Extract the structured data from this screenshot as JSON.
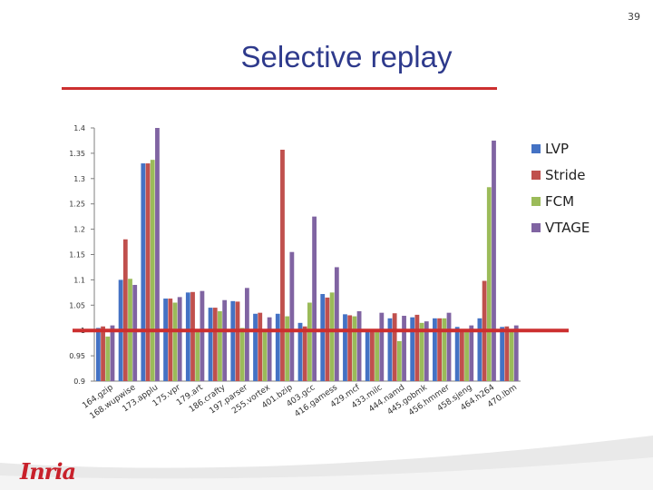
{
  "slide": {
    "title": "Selective replay",
    "page_number": "39",
    "logo_text": "Inria",
    "accent_color": "#cc2f2f",
    "title_color": "#2e3a8c"
  },
  "chart_data": {
    "type": "bar",
    "title": "",
    "xlabel": "",
    "ylabel": "",
    "ylim": [
      0.9,
      1.4
    ],
    "yticks": [
      "0.9",
      "0.95",
      "1",
      "1.05",
      "1.1",
      "1.15",
      "1.2",
      "1.25",
      "1.3",
      "1.35",
      "1.4"
    ],
    "grid": false,
    "legend_position": "right",
    "reference_line": 1.0,
    "categories": [
      "164.gzip",
      "168.wupwise",
      "173.applu",
      "175.vpr",
      "179.art",
      "186.crafty",
      "197.parser",
      "255.vortex",
      "401.bzip",
      "403.gcc",
      "416.gamess",
      "429.mcf",
      "433.milc",
      "444.namd",
      "445.gobmk",
      "456.hmmer",
      "458.sjeng",
      "464.h264",
      "470.lbm"
    ],
    "series": [
      {
        "name": "LVP",
        "color": "#4472c4",
        "values": [
          1.005,
          1.1,
          1.33,
          1.063,
          1.075,
          1.045,
          1.058,
          1.033,
          1.033,
          1.015,
          1.072,
          1.032,
          1.0,
          1.024,
          1.026,
          1.024,
          1.007,
          1.024,
          1.007
        ]
      },
      {
        "name": "Stride",
        "color": "#c0504d",
        "values": [
          1.008,
          1.18,
          1.33,
          1.063,
          1.076,
          1.045,
          1.057,
          1.035,
          1.357,
          1.008,
          1.065,
          1.03,
          1.0,
          1.034,
          1.031,
          1.024,
          1.0,
          1.098,
          1.008
        ]
      },
      {
        "name": "FCM",
        "color": "#9bbb59",
        "values": [
          0.988,
          1.102,
          1.337,
          1.055,
          1.0,
          1.038,
          1.005,
          1.0,
          1.028,
          1.055,
          1.075,
          1.028,
          1.0,
          0.979,
          1.015,
          1.024,
          1.0,
          1.283,
          1.0
        ]
      },
      {
        "name": "VTAGE",
        "color": "#8064a2",
        "values": [
          1.01,
          1.09,
          1.4,
          1.066,
          1.078,
          1.06,
          1.084,
          1.026,
          1.155,
          1.225,
          1.125,
          1.038,
          1.035,
          1.029,
          1.018,
          1.035,
          1.01,
          1.375,
          1.01
        ]
      }
    ]
  }
}
